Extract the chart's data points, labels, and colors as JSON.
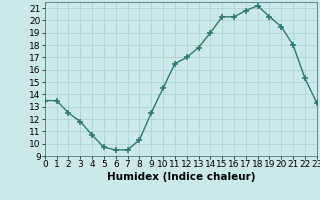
{
  "x": [
    0,
    1,
    2,
    3,
    4,
    5,
    6,
    7,
    8,
    9,
    10,
    11,
    12,
    13,
    14,
    15,
    16,
    17,
    18,
    19,
    20,
    21,
    22,
    23
  ],
  "y": [
    13.5,
    13.5,
    12.5,
    11.8,
    10.7,
    9.7,
    9.5,
    9.5,
    10.3,
    12.5,
    14.5,
    16.5,
    17.0,
    17.8,
    19.0,
    20.3,
    20.3,
    20.8,
    21.2,
    20.3,
    19.5,
    18.0,
    15.3,
    13.3
  ],
  "line_color": "#2d7a6e",
  "marker": "+",
  "markersize": 4,
  "markeredgewidth": 1.2,
  "linewidth": 1.0,
  "xlabel": "Humidex (Indice chaleur)",
  "xlabel_fontsize": 7.5,
  "bg_color": "#cce9e9",
  "grid_color": "#aacfcf",
  "ylim": [
    9,
    21.5
  ],
  "xlim": [
    0,
    23
  ],
  "yticks": [
    9,
    10,
    11,
    12,
    13,
    14,
    15,
    16,
    17,
    18,
    19,
    20,
    21
  ],
  "xticks": [
    0,
    1,
    2,
    3,
    4,
    5,
    6,
    7,
    8,
    9,
    10,
    11,
    12,
    13,
    14,
    15,
    16,
    17,
    18,
    19,
    20,
    21,
    22,
    23
  ],
  "tick_fontsize": 6.5
}
